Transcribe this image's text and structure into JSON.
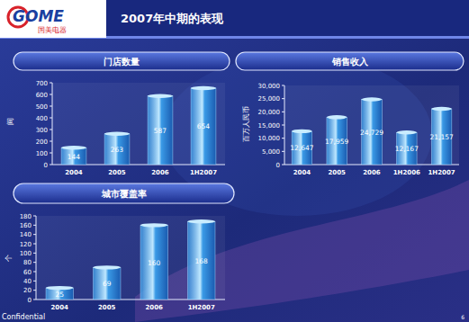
{
  "slide": {
    "title": "2007年中期的表现",
    "logo": "GOME",
    "logo_subtitle": "国美电器",
    "footer": "Confidential",
    "page": "6"
  },
  "chart_data": [
    {
      "type": "bar",
      "title": "门店数量",
      "ylabel": "间",
      "categories": [
        "2004",
        "2005",
        "2006",
        "1H2007"
      ],
      "values": [
        144,
        263,
        587,
        654
      ],
      "color": "#3a9ae6",
      "ylim": [
        0,
        700
      ],
      "yticks": [
        0,
        100,
        200,
        300,
        400,
        500,
        600,
        700
      ],
      "grid": false,
      "data_labels": true
    },
    {
      "type": "bar",
      "title": "销售收入",
      "ylabel": "百万人民币",
      "categories": [
        "2004",
        "2005",
        "2006",
        "1H2006",
        "1H2007"
      ],
      "values": [
        12647,
        17959,
        24729,
        12167,
        21157
      ],
      "value_labels": [
        "12,647",
        "17,959",
        "24,729",
        "12,167",
        "21,157"
      ],
      "color": "#3a9ae6",
      "ylim": [
        0,
        30000
      ],
      "yticks": [
        0,
        {
          "value": 5000,
          "label": "5,000"
        },
        {
          "value": 10000,
          "label": "10,000"
        },
        {
          "value": 15000,
          "label": "15,000"
        },
        {
          "value": 20000,
          "label": "20,000"
        },
        {
          "value": 25000,
          "label": "25,000"
        },
        {
          "value": 30000,
          "label": "30,000"
        }
      ],
      "grid": false,
      "data_labels": true
    },
    {
      "type": "bar",
      "title": "城市覆盖率",
      "ylabel": "个",
      "categories": [
        "2004",
        "2005",
        "2006",
        "1H2007"
      ],
      "values": [
        25,
        69,
        160,
        168
      ],
      "color": "#3a9ae6",
      "ylim": [
        0,
        180
      ],
      "yticks": [
        0,
        20,
        40,
        60,
        80,
        100,
        120,
        140,
        160,
        180
      ],
      "grid": false,
      "data_labels": true
    }
  ]
}
